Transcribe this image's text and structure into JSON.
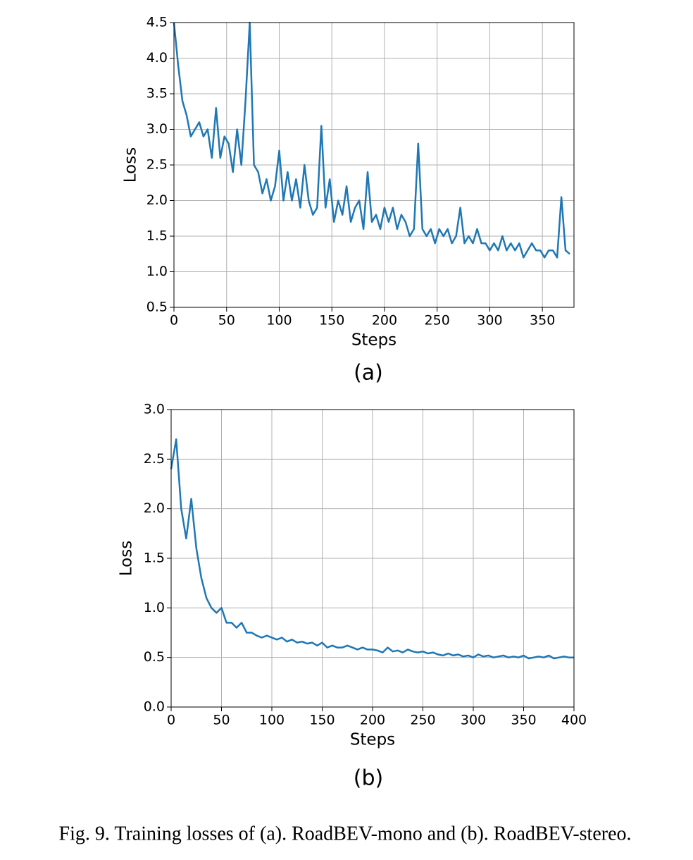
{
  "chart_data": [
    {
      "type": "line",
      "label": "(a)",
      "xlabel": "Steps",
      "ylabel": "Loss",
      "color": "#1f77b4",
      "grid": true,
      "xlim": [
        0,
        380
      ],
      "ylim": [
        0.5,
        4.5
      ],
      "xticks": [
        0,
        50,
        100,
        150,
        200,
        250,
        300,
        350
      ],
      "yticks": [
        0.5,
        {
          "value": 1,
          "label": "1.0"
        },
        1.5,
        {
          "value": 2,
          "label": "2.0"
        },
        2.5,
        {
          "value": 3,
          "label": "3.0"
        },
        3.5,
        {
          "value": 4,
          "label": "4.0"
        },
        4.5
      ],
      "x": [
        0,
        4,
        8,
        12,
        16,
        20,
        24,
        28,
        32,
        36,
        40,
        44,
        48,
        52,
        56,
        60,
        64,
        68,
        72,
        76,
        80,
        84,
        88,
        92,
        96,
        100,
        104,
        108,
        112,
        116,
        120,
        124,
        128,
        132,
        136,
        140,
        144,
        148,
        152,
        156,
        160,
        164,
        168,
        172,
        176,
        180,
        184,
        188,
        192,
        196,
        200,
        204,
        208,
        212,
        216,
        220,
        224,
        228,
        232,
        236,
        240,
        244,
        248,
        252,
        256,
        260,
        264,
        268,
        272,
        276,
        280,
        284,
        288,
        292,
        296,
        300,
        304,
        308,
        312,
        316,
        320,
        324,
        328,
        332,
        336,
        340,
        344,
        348,
        352,
        356,
        360,
        364,
        368,
        372,
        376
      ],
      "values": [
        4.5,
        3.9,
        3.4,
        3.2,
        2.9,
        3.0,
        3.1,
        2.9,
        3.0,
        2.6,
        3.3,
        2.6,
        2.9,
        2.8,
        2.4,
        3.0,
        2.5,
        3.4,
        4.5,
        2.5,
        2.4,
        2.1,
        2.3,
        2.0,
        2.2,
        2.7,
        2.0,
        2.4,
        2.0,
        2.3,
        1.9,
        2.5,
        2.0,
        1.8,
        1.9,
        3.05,
        1.9,
        2.3,
        1.7,
        2.0,
        1.8,
        2.2,
        1.7,
        1.9,
        2.0,
        1.6,
        2.4,
        1.7,
        1.8,
        1.6,
        1.9,
        1.7,
        1.9,
        1.6,
        1.8,
        1.7,
        1.5,
        1.6,
        2.8,
        1.6,
        1.5,
        1.6,
        1.4,
        1.6,
        1.5,
        1.6,
        1.4,
        1.5,
        1.9,
        1.4,
        1.5,
        1.4,
        1.6,
        1.4,
        1.4,
        1.3,
        1.4,
        1.3,
        1.5,
        1.3,
        1.4,
        1.3,
        1.4,
        1.2,
        1.3,
        1.4,
        1.3,
        1.3,
        1.2,
        1.3,
        1.3,
        1.2,
        2.05,
        1.3,
        1.25
      ]
    },
    {
      "type": "line",
      "label": "(b)",
      "xlabel": "Steps",
      "ylabel": "Loss",
      "color": "#1f77b4",
      "grid": true,
      "xlim": [
        0,
        400
      ],
      "ylim": [
        0,
        3
      ],
      "xticks": [
        0,
        50,
        100,
        150,
        200,
        250,
        300,
        350,
        400
      ],
      "yticks": [
        {
          "value": 0,
          "label": "0.0"
        },
        0.5,
        {
          "value": 1,
          "label": "1.0"
        },
        1.5,
        {
          "value": 2,
          "label": "2.0"
        },
        2.5,
        {
          "value": 3,
          "label": "3.0"
        }
      ],
      "x": [
        0,
        5,
        10,
        15,
        20,
        25,
        30,
        35,
        40,
        45,
        50,
        55,
        60,
        65,
        70,
        75,
        80,
        85,
        90,
        95,
        100,
        105,
        110,
        115,
        120,
        125,
        130,
        135,
        140,
        145,
        150,
        155,
        160,
        165,
        170,
        175,
        180,
        185,
        190,
        195,
        200,
        205,
        210,
        215,
        220,
        225,
        230,
        235,
        240,
        245,
        250,
        255,
        260,
        265,
        270,
        275,
        280,
        285,
        290,
        295,
        300,
        305,
        310,
        315,
        320,
        325,
        330,
        335,
        340,
        345,
        350,
        355,
        360,
        365,
        370,
        375,
        380,
        385,
        390,
        395,
        400
      ],
      "values": [
        2.4,
        2.7,
        2.0,
        1.7,
        2.1,
        1.6,
        1.3,
        1.1,
        1.0,
        0.95,
        1.0,
        0.85,
        0.85,
        0.8,
        0.85,
        0.75,
        0.75,
        0.72,
        0.7,
        0.72,
        0.7,
        0.68,
        0.7,
        0.66,
        0.68,
        0.65,
        0.66,
        0.64,
        0.65,
        0.62,
        0.65,
        0.6,
        0.62,
        0.6,
        0.6,
        0.62,
        0.6,
        0.58,
        0.6,
        0.58,
        0.58,
        0.57,
        0.55,
        0.6,
        0.56,
        0.57,
        0.55,
        0.58,
        0.56,
        0.55,
        0.56,
        0.54,
        0.55,
        0.53,
        0.52,
        0.54,
        0.52,
        0.53,
        0.51,
        0.52,
        0.5,
        0.53,
        0.51,
        0.52,
        0.5,
        0.51,
        0.52,
        0.5,
        0.51,
        0.5,
        0.52,
        0.49,
        0.5,
        0.51,
        0.5,
        0.52,
        0.49,
        0.5,
        0.51,
        0.5,
        0.5
      ]
    }
  ],
  "caption": "Fig. 9.  Training losses of (a). RoadBEV-mono and (b). RoadBEV-stereo."
}
